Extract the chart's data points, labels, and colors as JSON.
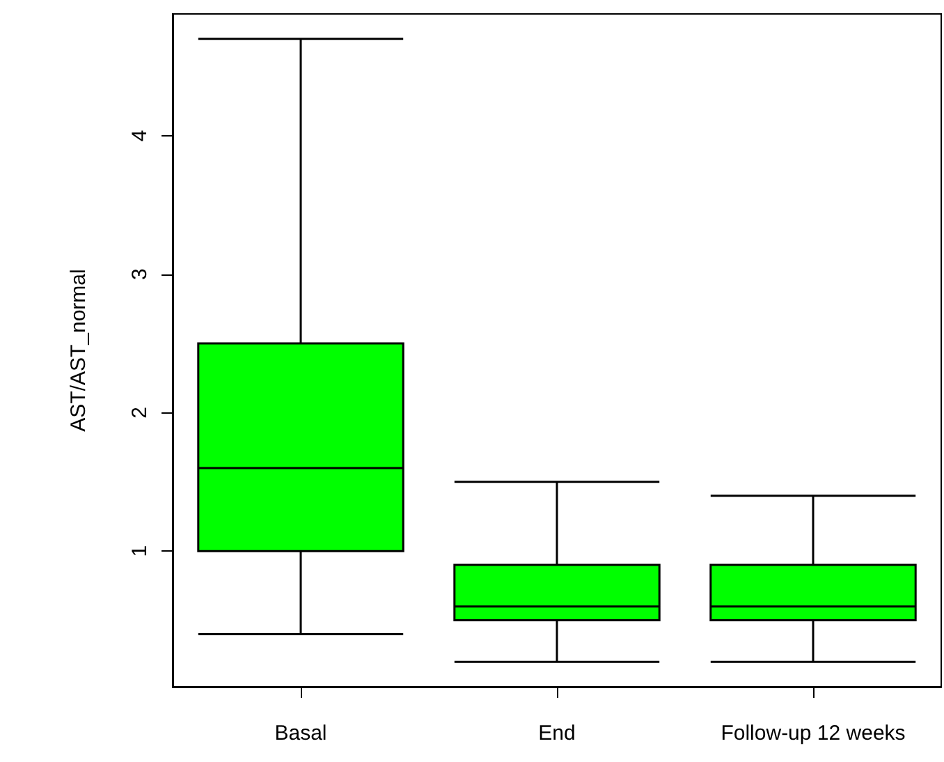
{
  "chart_data": {
    "type": "box",
    "ylabel": "AST/AST_normal",
    "categories": [
      "Basal",
      "End",
      "Follow-up 12 weeks"
    ],
    "color": "#00ff00",
    "boxes": [
      {
        "low": 0.4,
        "q1": 1.0,
        "median": 1.6,
        "q3": 2.5,
        "high": 4.7
      },
      {
        "low": 0.2,
        "q1": 0.5,
        "median": 0.6,
        "q3": 0.9,
        "high": 1.5
      },
      {
        "low": 0.2,
        "q1": 0.5,
        "median": 0.6,
        "q3": 0.9,
        "high": 1.4
      }
    ],
    "ylim": [
      0.02,
      4.88
    ],
    "yticks": [
      1,
      2,
      3,
      4
    ],
    "grid": false
  }
}
